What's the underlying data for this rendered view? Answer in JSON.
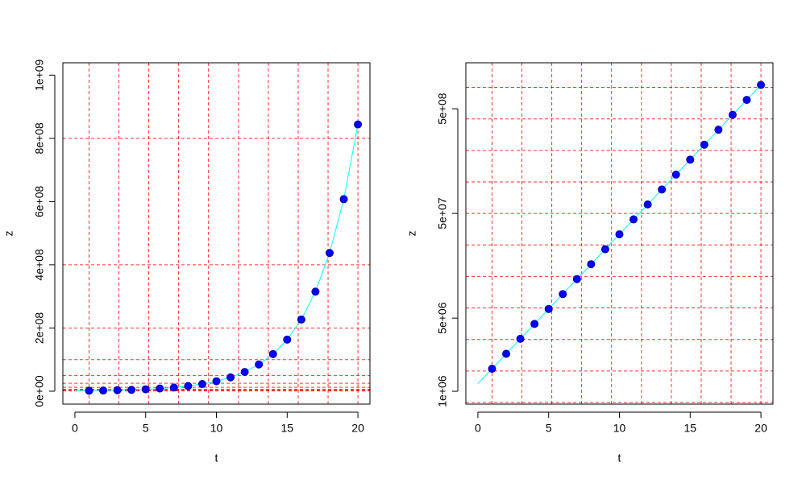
{
  "chart_data": [
    {
      "type": "scatter",
      "xlabel": "t",
      "ylabel": "z",
      "log_y": false,
      "xlim": [
        -0.85,
        20.85
      ],
      "ylim": [
        -40800000,
        1039000000
      ],
      "xticks": [
        0,
        5,
        10,
        15,
        20
      ],
      "yticks": [
        {
          "value": 0,
          "label": "0e+00"
        },
        {
          "value": 200000000,
          "label": "2e+08"
        },
        {
          "value": 400000000,
          "label": "4e+08"
        },
        {
          "value": 600000000,
          "label": "6e+08"
        },
        {
          "value": 800000000,
          "label": "8e+08"
        },
        {
          "value": 1000000000,
          "label": "1e+09"
        }
      ],
      "grid_color": "#ff0000",
      "grid_x": [
        1,
        3.11,
        5.22,
        7.33,
        9.44,
        11.56,
        13.67,
        15.78,
        17.89,
        20
      ],
      "grid_y": [
        800000000,
        400000000,
        200000000,
        100000000,
        50000000,
        25000000,
        12500000,
        6250000,
        3125000,
        1562500,
        781250
      ],
      "points": {
        "color": "#0000ff",
        "x": [
          1,
          2,
          3,
          4,
          5,
          6,
          7,
          8,
          9,
          10,
          11,
          12,
          13,
          14,
          15,
          16,
          17,
          18,
          19,
          20
        ],
        "values": [
          1640000,
          2280000,
          3170000,
          4400000,
          6110000,
          8480000,
          11780000,
          16360000,
          22730000,
          31580000,
          43850000,
          60900000,
          84600000,
          117500000,
          163200000,
          226700000,
          315000000,
          437400000,
          607500000,
          844000000
        ]
      },
      "curve": {
        "color": "#00ffff",
        "x": [
          0,
          1,
          2,
          3,
          4,
          5,
          6,
          7,
          8,
          9,
          10,
          11,
          12,
          13,
          14,
          15,
          16,
          17,
          18,
          19,
          20
        ],
        "values": [
          1180000,
          1640000,
          2280000,
          3170000,
          4400000,
          6110000,
          8480000,
          11780000,
          16360000,
          22730000,
          31580000,
          43850000,
          60900000,
          84600000,
          117500000,
          163200000,
          226700000,
          315000000,
          437400000,
          607500000,
          844000000
        ]
      }
    },
    {
      "type": "scatter",
      "xlabel": "t",
      "ylabel": "z",
      "log_y": true,
      "xlim": [
        -0.85,
        20.85
      ],
      "ylim": [
        754000,
        1374000000
      ],
      "xticks": [
        0,
        5,
        10,
        15,
        20
      ],
      "yticks": [
        {
          "value": 1000000,
          "label": "1e+06"
        },
        {
          "value": 5000000,
          "label": "5e+06"
        },
        {
          "value": 50000000,
          "label": "5e+07"
        },
        {
          "value": 500000000,
          "label": "5e+08"
        }
      ],
      "grid_color": "#ff0000",
      "grid_x": [
        1,
        3.11,
        5.22,
        7.33,
        9.44,
        11.56,
        13.67,
        15.78,
        17.89,
        20
      ],
      "grid_y": [
        800000000,
        400000000,
        200000000,
        100000000,
        50000000,
        25000000,
        12500000,
        6250000,
        3125000,
        1562500,
        781250
      ],
      "points": {
        "color": "#0000ff",
        "x": [
          1,
          2,
          3,
          4,
          5,
          6,
          7,
          8,
          9,
          10,
          11,
          12,
          13,
          14,
          15,
          16,
          17,
          18,
          19,
          20
        ],
        "values": [
          1640000,
          2280000,
          3170000,
          4400000,
          6110000,
          8480000,
          11780000,
          16360000,
          22730000,
          31580000,
          43850000,
          60900000,
          84600000,
          117500000,
          163200000,
          226700000,
          315000000,
          437400000,
          607500000,
          844000000
        ]
      },
      "curve": {
        "color": "#00ffff",
        "x": [
          0,
          1,
          2,
          3,
          4,
          5,
          6,
          7,
          8,
          9,
          10,
          11,
          12,
          13,
          14,
          15,
          16,
          17,
          18,
          19,
          20
        ],
        "values": [
          1180000,
          1640000,
          2280000,
          3170000,
          4400000,
          6110000,
          8480000,
          11780000,
          16360000,
          22730000,
          31580000,
          43850000,
          60900000,
          84600000,
          117500000,
          163200000,
          226700000,
          315000000,
          437400000,
          607500000,
          844000000
        ]
      }
    }
  ]
}
